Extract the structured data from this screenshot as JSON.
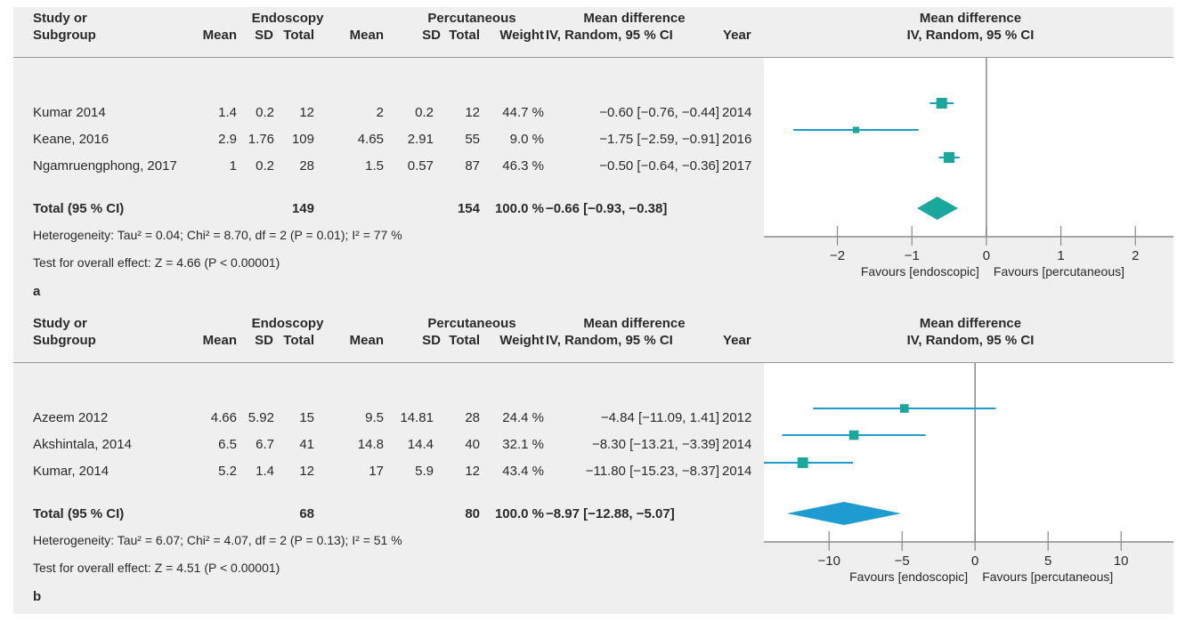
{
  "panels": [
    {
      "id": "a",
      "label": "a",
      "headers": {
        "study1": "Study or",
        "study2": "Subgroup",
        "endo": "Endoscopy",
        "perc": "Percutaneous",
        "md1": "Mean difference",
        "md2": "IV, Random, 95 % CI",
        "mean": "Mean",
        "sd": "SD",
        "total": "Total",
        "weight": "Weight",
        "year": "Year",
        "plot1": "Mean difference",
        "plot2": "IV, Random, 95 % CI"
      },
      "rows": [
        {
          "study": "Kumar 2014",
          "e_mean": "1.4",
          "e_sd": "0.2",
          "e_total": "12",
          "p_mean": "2",
          "p_sd": "0.2",
          "p_total": "12",
          "weight": "44.7 %",
          "ci": "−0.60 [−0.76, −0.44]",
          "year": "2014"
        },
        {
          "study": "Keane, 2016",
          "e_mean": "2.9",
          "e_sd": "1.76",
          "e_total": "109",
          "p_mean": "4.65",
          "p_sd": "2.91",
          "p_total": "55",
          "weight": "9.0 %",
          "ci": "−1.75 [−2.59, −0.91]",
          "year": "2016"
        },
        {
          "study": "Ngamruengphong, 2017",
          "e_mean": "1",
          "e_sd": "0.2",
          "e_total": "28",
          "p_mean": "1.5",
          "p_sd": "0.57",
          "p_total": "87",
          "weight": "46.3 %",
          "ci": "−0.50 [−0.64, −0.36]",
          "year": "2017"
        }
      ],
      "total": {
        "label": "Total (95 % CI)",
        "e_total": "149",
        "p_total": "154",
        "weight": "100.0 %",
        "ci": "−0.66 [−0.93, −0.38]"
      },
      "heterogeneity": "Heterogeneity: Tau² = 0.04; Chi² = 8.70, df = 2 (P = 0.01); I² = 77 %",
      "overall": "Test for overall effect: Z = 4.66 (P < 0.00001)",
      "favours_left": "Favours [endoscopic]",
      "favours_right": "Favours [percutaneous]"
    },
    {
      "id": "b",
      "label": "b",
      "headers": {
        "study1": "Study or",
        "study2": "Subgroup",
        "endo": "Endoscopy",
        "perc": "Percutaneous",
        "md1": "Mean difference",
        "md2": "IV, Random, 95 % CI",
        "mean": "Mean",
        "sd": "SD",
        "total": "Total",
        "weight": "Weight",
        "year": "Year",
        "plot1": "Mean difference",
        "plot2": "IV, Random, 95 % CI"
      },
      "rows": [
        {
          "study": "Azeem 2012",
          "e_mean": "4.66",
          "e_sd": "5.92",
          "e_total": "15",
          "p_mean": "9.5",
          "p_sd": "14.81",
          "p_total": "28",
          "weight": "24.4 %",
          "ci": "−4.84 [−11.09, 1.41]",
          "year": "2012"
        },
        {
          "study": "Akshintala, 2014",
          "e_mean": "6.5",
          "e_sd": "6.7",
          "e_total": "41",
          "p_mean": "14.8",
          "p_sd": "14.4",
          "p_total": "40",
          "weight": "32.1 %",
          "ci": "−8.30 [−13.21, −3.39]",
          "year": "2014"
        },
        {
          "study": "Kumar, 2014",
          "e_mean": "5.2",
          "e_sd": "1.4",
          "e_total": "12",
          "p_mean": "17",
          "p_sd": "5.9",
          "p_total": "12",
          "weight": "43.4 %",
          "ci": "−11.80 [−15.23, −8.37]",
          "year": "2014"
        }
      ],
      "total": {
        "label": "Total (95 % CI)",
        "e_total": "68",
        "p_total": "80",
        "weight": "100.0 %",
        "ci": "−8.97 [−12.88, −5.07]"
      },
      "heterogeneity": "Heterogeneity: Tau² = 6.07; Chi² = 4.07, df = 2 (P = 0.13); I² = 51 %",
      "overall": "Test for overall effect: Z = 4.51 (P < 0.00001)",
      "favours_left": "Favours [endoscopic]",
      "favours_right": "Favours [percutaneous]"
    }
  ],
  "chart_data": [
    {
      "type": "forest",
      "panel": "a",
      "xlim": [
        -2.7,
        2.2
      ],
      "ticks": [
        -2,
        -1,
        0,
        1,
        2
      ],
      "tick_labels": [
        "−2",
        "−1",
        "0",
        "1",
        "2"
      ],
      "studies": [
        {
          "name": "Kumar 2014",
          "estimate": -0.6,
          "lower": -0.76,
          "upper": -0.44,
          "weight": 44.7
        },
        {
          "name": "Keane, 2016",
          "estimate": -1.75,
          "lower": -2.59,
          "upper": -0.91,
          "weight": 9.0
        },
        {
          "name": "Ngamruengphong, 2017",
          "estimate": -0.5,
          "lower": -0.64,
          "upper": -0.36,
          "weight": 46.3
        }
      ],
      "pooled": {
        "estimate": -0.66,
        "lower": -0.93,
        "upper": -0.38
      },
      "colors": {
        "study": "#1aa89c",
        "ci_line": "#1e9bd0",
        "pooled": "#1aa89c",
        "axis": "#8a8a8a"
      }
    },
    {
      "type": "forest",
      "panel": "b",
      "xlim": [
        -13.0,
        12.0
      ],
      "ticks": [
        -10,
        -5,
        0,
        5,
        10
      ],
      "tick_labels": [
        "−10",
        "−5",
        "0",
        "5",
        "10"
      ],
      "studies": [
        {
          "name": "Azeem 2012",
          "estimate": -4.84,
          "lower": -11.09,
          "upper": 1.41,
          "weight": 24.4
        },
        {
          "name": "Akshintala, 2014",
          "estimate": -8.3,
          "lower": -13.21,
          "upper": -3.39,
          "weight": 32.1
        },
        {
          "name": "Kumar, 2014",
          "estimate": -11.8,
          "lower": -15.23,
          "upper": -8.37,
          "weight": 43.4
        }
      ],
      "pooled": {
        "estimate": -8.97,
        "lower": -12.88,
        "upper": -5.07
      },
      "colors": {
        "study": "#1aa89c",
        "ci_line": "#1e9bd0",
        "pooled": "#1e9bd0",
        "axis": "#8a8a8a"
      }
    }
  ]
}
